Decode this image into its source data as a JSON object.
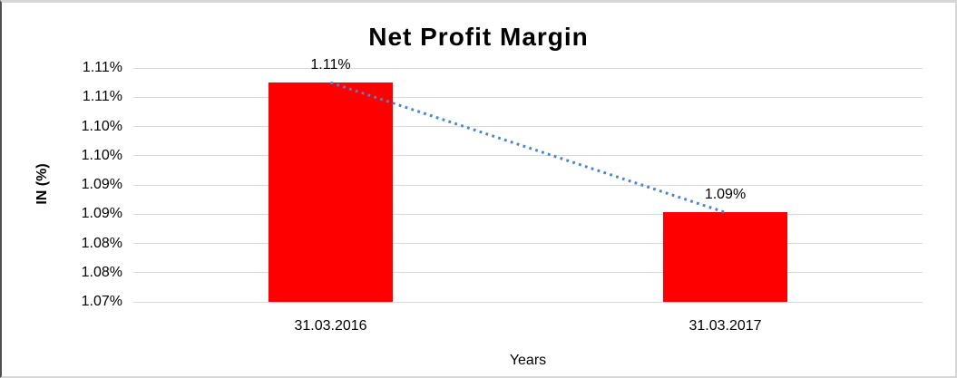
{
  "chart_data": {
    "type": "bar",
    "title": "Net Profit Margin",
    "xlabel": "Years",
    "ylabel": "IN (%)",
    "categories": [
      "31.03.2016",
      "31.03.2017"
    ],
    "series": [
      {
        "name": "Net Profit Margin",
        "values": [
          1.1075,
          1.0853
        ]
      }
    ],
    "data_labels": [
      "1.11%",
      "1.09%"
    ],
    "ylim": [
      1.07,
      1.11
    ],
    "ytick_step": 0.005,
    "ytick_labels_top_to_bottom": [
      "1.11%",
      "1.11%",
      "1.10%",
      "1.10%",
      "1.09%",
      "1.09%",
      "1.08%",
      "1.08%",
      "1.07%"
    ],
    "grid": true,
    "legend": "none",
    "trendline": {
      "type": "linear",
      "style": "dotted",
      "connects": [
        "top of 31.03.2016 bar",
        "top of 31.03.2017 bar"
      ]
    },
    "colors": {
      "bar": "#ff0000",
      "trendline": "#4a86c8",
      "gridline": "#d9d9d9",
      "text": "#000000"
    }
  }
}
